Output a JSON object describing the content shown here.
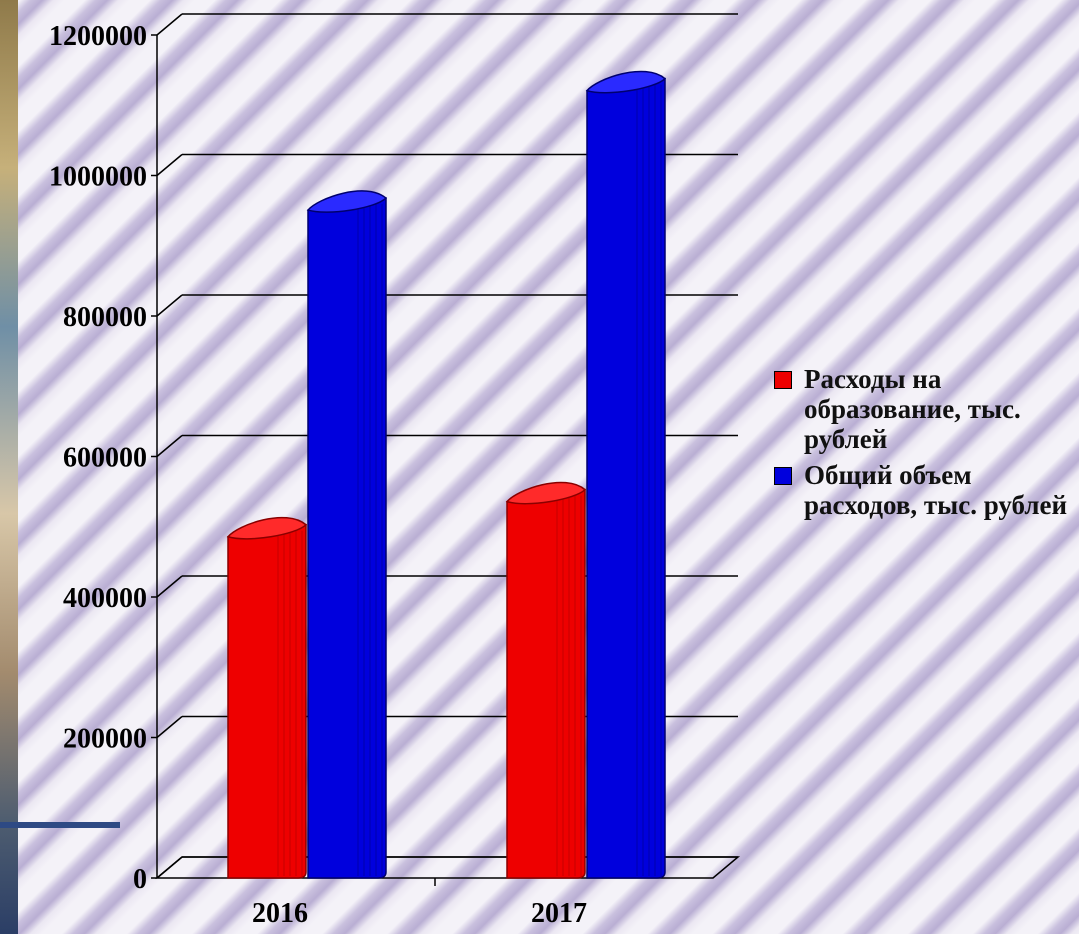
{
  "chart_data": {
    "type": "bar",
    "categories": [
      "2016",
      "2017"
    ],
    "series": [
      {
        "name": "Расходы на образование, тыс. рублей",
        "color": "#ee0000",
        "values": [
          500000,
          550000
        ]
      },
      {
        "name": "Общий объем расходов, тыс. рублей",
        "color": "#0000dd",
        "values": [
          965000,
          1135000
        ]
      }
    ],
    "yticks": [
      "0",
      "200000",
      "400000",
      "600000",
      "800000",
      "1000000",
      "1200000"
    ],
    "ylim": [
      0,
      1200000
    ],
    "grid": true,
    "legend_position": "right",
    "title": "",
    "xlabel": "",
    "ylabel": ""
  }
}
